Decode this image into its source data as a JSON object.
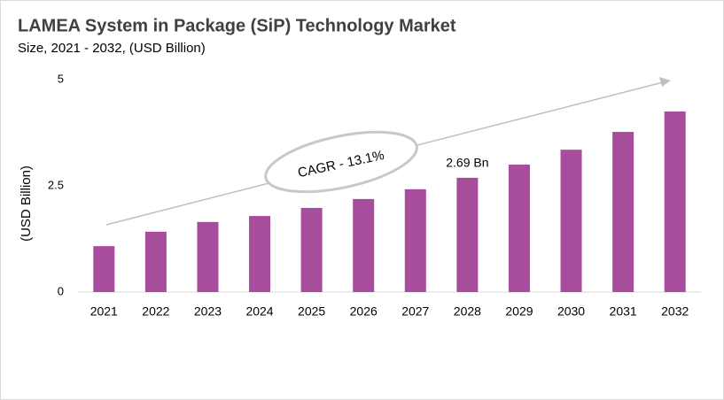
{
  "chart_data": {
    "type": "bar",
    "title": "LAMEA System in Package (SiP) Technology Market",
    "subtitle": "Size, 2021 - 2032, (USD Billion)",
    "y_label": "(USD Billion)",
    "annotation": "CAGR - 13.1%",
    "categories": [
      "2021",
      "2022",
      "2023",
      "2024",
      "2025",
      "2026",
      "2027",
      "2028",
      "2029",
      "2030",
      "2031",
      "2032"
    ],
    "values": [
      1.08,
      1.42,
      1.65,
      1.79,
      1.98,
      2.19,
      2.42,
      2.69,
      3.0,
      3.35,
      3.77,
      4.25
    ],
    "value_labels": [
      null,
      null,
      null,
      null,
      null,
      null,
      null,
      "2.69 Bn",
      null,
      null,
      null,
      null
    ],
    "color": "#a84c9e",
    "ylim": [
      0,
      5
    ],
    "yticks": [
      0,
      2.5,
      5
    ],
    "grid": false
  }
}
